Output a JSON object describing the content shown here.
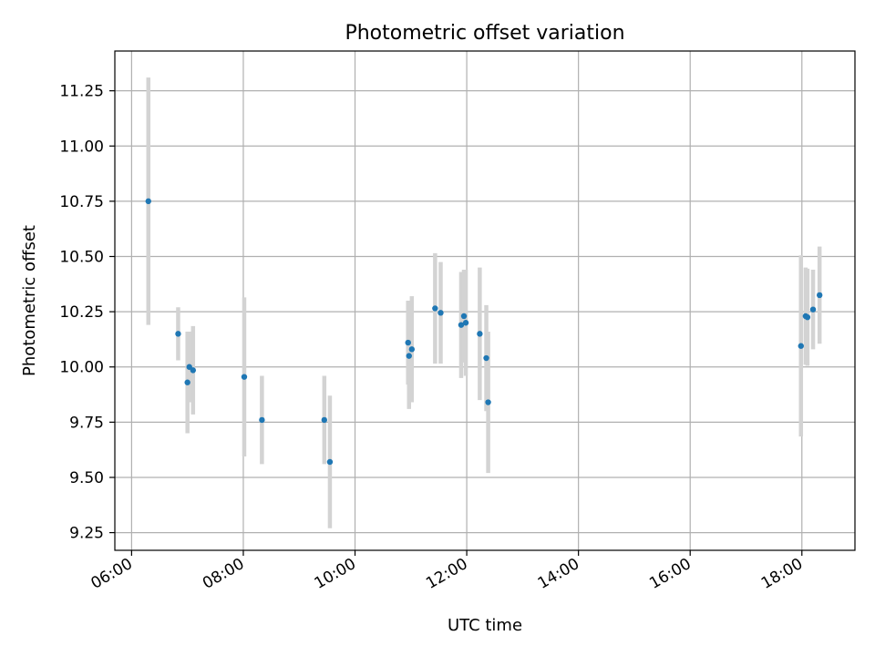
{
  "chart_data": {
    "type": "scatter",
    "title": "Photometric offset variation",
    "xlabel": "UTC time",
    "ylabel": "Photometric offset",
    "x_ticks": [
      "06:00",
      "08:00",
      "10:00",
      "12:00",
      "14:00",
      "16:00",
      "18:00"
    ],
    "x_tick_hours": [
      6,
      8,
      10,
      12,
      14,
      16,
      18
    ],
    "xlim_hours": [
      5.7,
      18.95
    ],
    "y_ticks": [
      "9.25",
      "9.50",
      "9.75",
      "10.00",
      "10.25",
      "10.50",
      "10.75",
      "11.00",
      "11.25"
    ],
    "y_tick_values": [
      9.25,
      9.5,
      9.75,
      10.0,
      10.25,
      10.5,
      10.75,
      11.0,
      11.25
    ],
    "ylim": [
      9.17,
      11.43
    ],
    "grid": true,
    "point_color": "#1f77b4",
    "errorbar_color": "#d3d3d3",
    "points": [
      {
        "time": "06:18",
        "y": 10.75,
        "err": 0.56
      },
      {
        "time": "06:50",
        "y": 10.15,
        "err": 0.12
      },
      {
        "time": "07:00",
        "y": 9.93,
        "err": 0.23
      },
      {
        "time": "07:02",
        "y": 10.0,
        "err": 0.16
      },
      {
        "time": "07:06",
        "y": 9.985,
        "err": 0.2
      },
      {
        "time": "08:01",
        "y": 9.955,
        "err": 0.36
      },
      {
        "time": "08:20",
        "y": 9.76,
        "err": 0.2
      },
      {
        "time": "09:27",
        "y": 9.76,
        "err": 0.2
      },
      {
        "time": "09:33",
        "y": 9.57,
        "err": 0.3
      },
      {
        "time": "10:57",
        "y": 10.11,
        "err": 0.19
      },
      {
        "time": "10:58",
        "y": 10.05,
        "err": 0.24
      },
      {
        "time": "11:01",
        "y": 10.08,
        "err": 0.24
      },
      {
        "time": "11:26",
        "y": 10.265,
        "err": 0.25
      },
      {
        "time": "11:32",
        "y": 10.245,
        "err": 0.23
      },
      {
        "time": "11:54",
        "y": 10.19,
        "err": 0.24
      },
      {
        "time": "11:57",
        "y": 10.23,
        "err": 0.21
      },
      {
        "time": "11:59",
        "y": 10.2,
        "err": 0.24
      },
      {
        "time": "12:14",
        "y": 10.15,
        "err": 0.3
      },
      {
        "time": "12:21",
        "y": 10.04,
        "err": 0.24
      },
      {
        "time": "12:23",
        "y": 9.84,
        "err": 0.32
      },
      {
        "time": "17:59",
        "y": 10.095,
        "err": 0.41
      },
      {
        "time": "18:04",
        "y": 10.23,
        "err": 0.22
      },
      {
        "time": "18:06",
        "y": 10.225,
        "err": 0.22
      },
      {
        "time": "18:12",
        "y": 10.26,
        "err": 0.18
      },
      {
        "time": "18:19",
        "y": 10.325,
        "err": 0.22
      }
    ]
  }
}
